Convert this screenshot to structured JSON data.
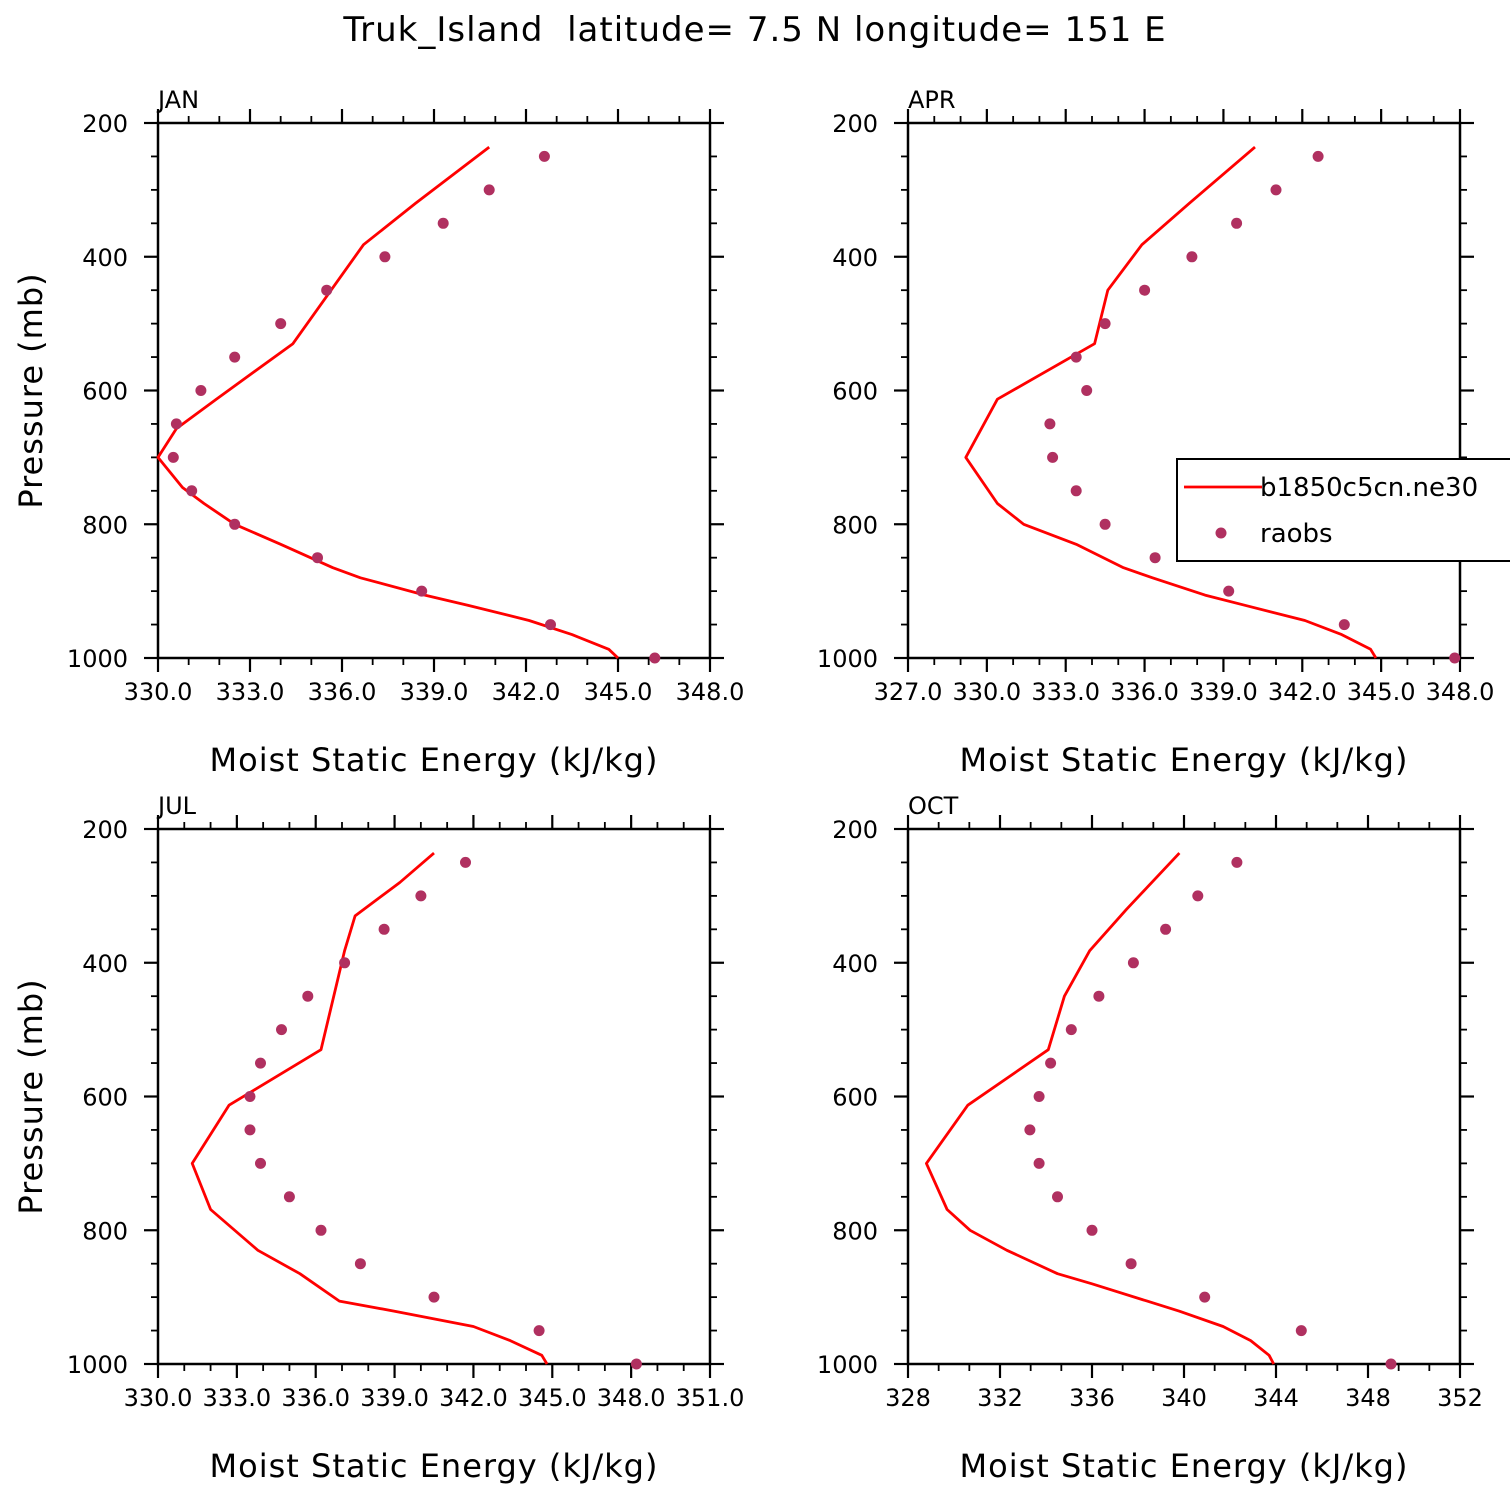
{
  "figure": {
    "title": "Truk_Island  latitude= 7.5 N longitude= 151 E",
    "colors": {
      "model_line": "#ff0000",
      "obs_marker": "#b03060",
      "axis": "#000000"
    },
    "legend": {
      "entries": [
        "b1850c5cn.ne30",
        "raobs"
      ],
      "placement": "inside APR panel, right"
    }
  },
  "chart_data": [
    {
      "type": "line",
      "panel_label": "JAN",
      "xlabel": "Moist Static Energy (kJ/kg)",
      "ylabel": "Pressure (mb)",
      "xlim": [
        330,
        348
      ],
      "ylim": [
        1000,
        200
      ],
      "y_inverted": true,
      "xticks": [
        "330.0",
        "333.0",
        "336.0",
        "339.0",
        "342.0",
        "345.0",
        "348.0"
      ],
      "yticks": [
        "200",
        "400",
        "600",
        "800",
        "1000"
      ],
      "series": [
        {
          "name": "b1850c5cn.ne30",
          "style": "line",
          "x": [
            340.8,
            338.4,
            336.7,
            334.4,
            331.9,
            330.6,
            330.0,
            330.8,
            331.5,
            332.5,
            334.0,
            335.7,
            336.6,
            338.7,
            340.1,
            342.1,
            343.5,
            344.7,
            345.0
          ],
          "y": [
            236,
            320,
            382,
            530,
            613,
            657,
            700,
            745,
            769,
            800,
            830,
            865,
            880,
            906,
            921,
            944,
            965,
            987,
            1000
          ]
        },
        {
          "name": "raobs",
          "style": "markers",
          "x": [
            342.6,
            340.8,
            339.3,
            337.4,
            335.5,
            334.0,
            332.5,
            331.4,
            330.6,
            330.5,
            331.1,
            332.5,
            335.2,
            338.6,
            342.8,
            346.2
          ],
          "y": [
            250,
            300,
            350,
            400,
            450,
            500,
            550,
            600,
            650,
            700,
            750,
            800,
            850,
            900,
            950,
            1000
          ]
        }
      ]
    },
    {
      "type": "line",
      "panel_label": "APR",
      "xlabel": "Moist Static Energy (kJ/kg)",
      "ylabel": "",
      "xlim": [
        327,
        348
      ],
      "ylim": [
        1000,
        200
      ],
      "y_inverted": true,
      "xticks": [
        "327.0",
        "330.0",
        "333.0",
        "336.0",
        "339.0",
        "342.0",
        "345.0",
        "348.0"
      ],
      "yticks": [
        "200",
        "400",
        "600",
        "800",
        "1000"
      ],
      "series": [
        {
          "name": "b1850c5cn.ne30",
          "style": "line",
          "x": [
            340.2,
            337.7,
            335.9,
            334.6,
            334.1,
            330.4,
            329.2,
            330.4,
            331.4,
            333.4,
            335.2,
            336.3,
            338.3,
            339.8,
            342.1,
            343.5,
            344.6,
            344.8
          ],
          "y": [
            236,
            320,
            382,
            450,
            530,
            613,
            700,
            769,
            800,
            830,
            865,
            880,
            906,
            921,
            944,
            965,
            987,
            1000
          ]
        },
        {
          "name": "raobs",
          "style": "markers",
          "x": [
            342.6,
            341.0,
            339.5,
            337.8,
            336.0,
            334.5,
            333.4,
            333.8,
            332.4,
            332.5,
            333.4,
            334.5,
            336.4,
            339.2,
            343.6,
            347.8
          ],
          "y": [
            250,
            300,
            350,
            400,
            450,
            500,
            550,
            600,
            650,
            700,
            750,
            800,
            850,
            900,
            950,
            1000
          ]
        }
      ]
    },
    {
      "type": "line",
      "panel_label": "JUL",
      "xlabel": "Moist Static Energy (kJ/kg)",
      "ylabel": "Pressure (mb)",
      "xlim": [
        330,
        351
      ],
      "ylim": [
        1000,
        200
      ],
      "y_inverted": true,
      "xticks": [
        "330.0",
        "333.0",
        "336.0",
        "339.0",
        "342.0",
        "345.0",
        "348.0",
        "351.0"
      ],
      "yticks": [
        "200",
        "400",
        "600",
        "800",
        "1000"
      ],
      "series": [
        {
          "name": "b1850c5cn.ne30",
          "style": "line",
          "x": [
            340.5,
            339.2,
            337.5,
            337.1,
            336.2,
            332.7,
            331.3,
            332.0,
            333.8,
            335.4,
            336.9,
            339.0,
            342.0,
            343.4,
            344.6,
            344.8
          ],
          "y": [
            236,
            280,
            330,
            382,
            530,
            613,
            700,
            769,
            830,
            865,
            906,
            921,
            944,
            965,
            987,
            1000
          ]
        },
        {
          "name": "raobs",
          "style": "markers",
          "x": [
            341.7,
            340.0,
            338.6,
            337.1,
            335.7,
            334.7,
            333.9,
            333.5,
            333.5,
            333.9,
            335.0,
            336.2,
            337.7,
            340.5,
            344.5,
            348.2
          ],
          "y": [
            250,
            300,
            350,
            400,
            450,
            500,
            550,
            600,
            650,
            700,
            750,
            800,
            850,
            900,
            950,
            1000
          ]
        }
      ]
    },
    {
      "type": "line",
      "panel_label": "OCT",
      "xlabel": "Moist Static Energy (kJ/kg)",
      "ylabel": "",
      "xlim": [
        328,
        352
      ],
      "ylim": [
        1000,
        200
      ],
      "y_inverted": true,
      "xticks": [
        "328",
        "332",
        "336",
        "340",
        "344",
        "348",
        "352"
      ],
      "yticks": [
        "200",
        "400",
        "600",
        "800",
        "1000"
      ],
      "series": [
        {
          "name": "b1850c5cn.ne30",
          "style": "line",
          "x": [
            339.8,
            337.5,
            335.9,
            334.8,
            334.1,
            330.6,
            328.8,
            329.7,
            330.7,
            332.3,
            334.5,
            336.0,
            338.4,
            339.8,
            341.7,
            342.9,
            343.7,
            343.9
          ],
          "y": [
            236,
            320,
            382,
            450,
            530,
            613,
            700,
            769,
            800,
            830,
            865,
            880,
            906,
            921,
            944,
            965,
            987,
            1000
          ]
        },
        {
          "name": "raobs",
          "style": "markers",
          "x": [
            342.3,
            340.6,
            339.2,
            337.8,
            336.3,
            335.1,
            334.2,
            333.7,
            333.3,
            333.7,
            334.5,
            336.0,
            337.7,
            340.9,
            345.1,
            349.0
          ],
          "y": [
            250,
            300,
            350,
            400,
            450,
            500,
            550,
            600,
            650,
            700,
            750,
            800,
            850,
            900,
            950,
            1000
          ]
        }
      ]
    }
  ]
}
